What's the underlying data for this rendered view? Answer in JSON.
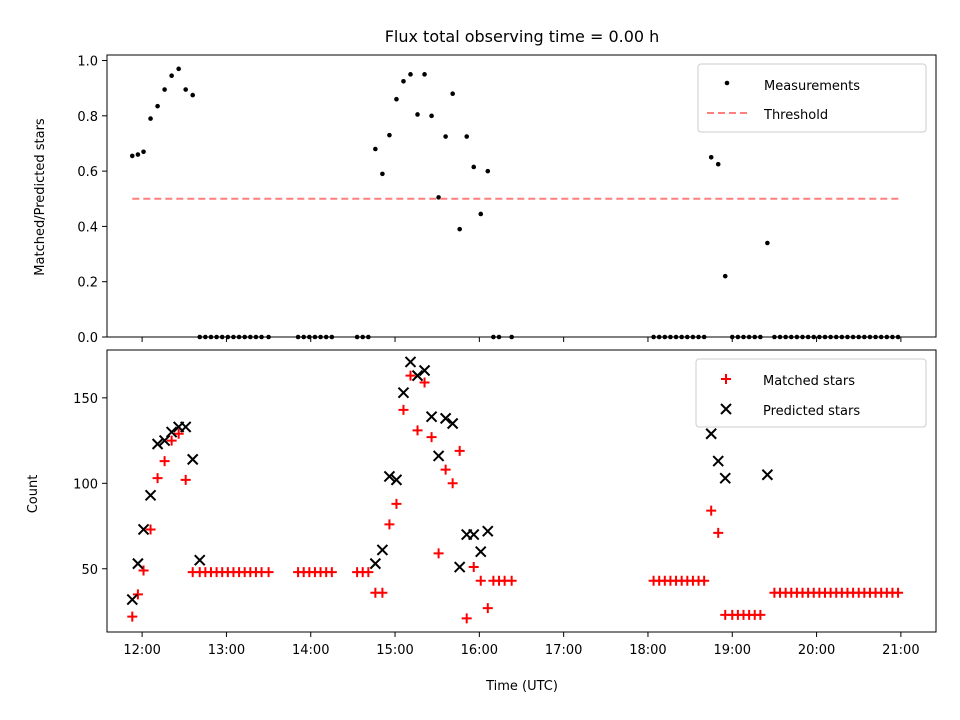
{
  "title": "Flux total observing time = 0.00 h",
  "colors": {
    "measure": "#000000",
    "threshold": "#ff7f7f",
    "matched": "#ff0000",
    "predicted": "#000000"
  },
  "chart_data": [
    {
      "type": "scatter",
      "ylabel": "Matched/Predicted stars",
      "xlim": [
        "11:35",
        "21:25"
      ],
      "ylim": [
        0,
        1.02
      ],
      "yticks": [
        "0.0",
        "0.2",
        "0.4",
        "0.6",
        "0.8",
        "1.0"
      ],
      "legend": {
        "placement": "top-right",
        "entries": [
          "Measurements",
          "Threshold"
        ]
      },
      "threshold": {
        "name": "Threshold",
        "value": 0.5,
        "x_range": [
          "11:53",
          "21:00"
        ],
        "style": "dashed"
      },
      "series": [
        {
          "name": "Measurements",
          "marker": "dot",
          "points": [
            [
              "11:53",
              0.655
            ],
            [
              "11:57",
              0.66
            ],
            [
              "12:01",
              0.67
            ],
            [
              "12:06",
              0.79
            ],
            [
              "12:11",
              0.835
            ],
            [
              "12:16",
              0.895
            ],
            [
              "12:21",
              0.945
            ],
            [
              "12:26",
              0.97
            ],
            [
              "12:31",
              0.895
            ],
            [
              "12:36",
              0.875
            ],
            [
              "12:41",
              0
            ],
            [
              "12:45",
              0
            ],
            [
              "12:49",
              0
            ],
            [
              "12:53",
              0
            ],
            [
              "12:57",
              0
            ],
            [
              "13:01",
              0
            ],
            [
              "13:05",
              0
            ],
            [
              "13:09",
              0
            ],
            [
              "13:13",
              0
            ],
            [
              "13:17",
              0
            ],
            [
              "13:21",
              0
            ],
            [
              "13:25",
              0
            ],
            [
              "13:30",
              0
            ],
            [
              "13:51",
              0
            ],
            [
              "13:55",
              0
            ],
            [
              "13:59",
              0
            ],
            [
              "14:03",
              0
            ],
            [
              "14:07",
              0
            ],
            [
              "14:11",
              0
            ],
            [
              "14:15",
              0
            ],
            [
              "14:33",
              0
            ],
            [
              "14:37",
              0
            ],
            [
              "14:41",
              0
            ],
            [
              "14:46",
              0.68
            ],
            [
              "14:51",
              0.59
            ],
            [
              "14:56",
              0.73
            ],
            [
              "15:01",
              0.86
            ],
            [
              "15:06",
              0.925
            ],
            [
              "15:11",
              0.95
            ],
            [
              "15:16",
              0.805
            ],
            [
              "15:21",
              0.95
            ],
            [
              "15:26",
              0.8
            ],
            [
              "15:31",
              0.505
            ],
            [
              "15:36",
              0.725
            ],
            [
              "15:41",
              0.88
            ],
            [
              "15:46",
              0.39
            ],
            [
              "15:51",
              0.725
            ],
            [
              "15:56",
              0.615
            ],
            [
              "16:01",
              0.445
            ],
            [
              "16:06",
              0.6
            ],
            [
              "16:10",
              0
            ],
            [
              "16:14",
              0
            ],
            [
              "16:23",
              0
            ],
            [
              "18:04",
              0
            ],
            [
              "18:08",
              0
            ],
            [
              "18:12",
              0
            ],
            [
              "18:16",
              0
            ],
            [
              "18:20",
              0
            ],
            [
              "18:24",
              0
            ],
            [
              "18:28",
              0
            ],
            [
              "18:32",
              0
            ],
            [
              "18:36",
              0
            ],
            [
              "18:40",
              0
            ],
            [
              "18:45",
              0.65
            ],
            [
              "18:50",
              0.625
            ],
            [
              "18:55",
              0.22
            ],
            [
              "19:00",
              0
            ],
            [
              "19:04",
              0
            ],
            [
              "19:08",
              0
            ],
            [
              "19:12",
              0
            ],
            [
              "19:16",
              0
            ],
            [
              "19:20",
              0
            ],
            [
              "19:25",
              0.34
            ],
            [
              "19:30",
              0
            ],
            [
              "19:34",
              0
            ],
            [
              "19:38",
              0
            ],
            [
              "19:42",
              0
            ],
            [
              "19:46",
              0
            ],
            [
              "19:50",
              0
            ],
            [
              "19:54",
              0
            ],
            [
              "19:58",
              0
            ],
            [
              "20:02",
              0
            ],
            [
              "20:06",
              0
            ],
            [
              "20:10",
              0
            ],
            [
              "20:14",
              0
            ],
            [
              "20:18",
              0
            ],
            [
              "20:22",
              0
            ],
            [
              "20:26",
              0
            ],
            [
              "20:30",
              0
            ],
            [
              "20:34",
              0
            ],
            [
              "20:38",
              0
            ],
            [
              "20:42",
              0
            ],
            [
              "20:46",
              0
            ],
            [
              "20:50",
              0
            ],
            [
              "20:54",
              0
            ],
            [
              "20:58",
              0
            ]
          ]
        }
      ]
    },
    {
      "type": "scatter",
      "xlabel": "Time (UTC)",
      "ylabel": "Count",
      "xlim": [
        "11:35",
        "21:25"
      ],
      "ylim": [
        13,
        178
      ],
      "yticks": [
        "50",
        "100",
        "150"
      ],
      "xticks": [
        "12:00",
        "13:00",
        "14:00",
        "15:00",
        "16:00",
        "17:00",
        "18:00",
        "19:00",
        "20:00",
        "21:00"
      ],
      "legend": {
        "placement": "top-right",
        "entries": [
          "Matched stars",
          "Predicted stars"
        ]
      },
      "series": [
        {
          "name": "Matched stars",
          "marker": "plus",
          "points": [
            [
              "11:53",
              22
            ],
            [
              "11:57",
              35
            ],
            [
              "12:01",
              49
            ],
            [
              "12:06",
              73
            ],
            [
              "12:11",
              103
            ],
            [
              "12:16",
              113
            ],
            [
              "12:21",
              125
            ],
            [
              "12:26",
              129
            ],
            [
              "12:31",
              102
            ],
            [
              "12:36",
              48
            ],
            [
              "12:41",
              48
            ],
            [
              "12:45",
              48
            ],
            [
              "12:49",
              48
            ],
            [
              "12:53",
              48
            ],
            [
              "12:57",
              48
            ],
            [
              "13:01",
              48
            ],
            [
              "13:05",
              48
            ],
            [
              "13:09",
              48
            ],
            [
              "13:13",
              48
            ],
            [
              "13:17",
              48
            ],
            [
              "13:21",
              48
            ],
            [
              "13:25",
              48
            ],
            [
              "13:30",
              48
            ],
            [
              "13:51",
              48
            ],
            [
              "13:55",
              48
            ],
            [
              "13:59",
              48
            ],
            [
              "14:03",
              48
            ],
            [
              "14:07",
              48
            ],
            [
              "14:11",
              48
            ],
            [
              "14:15",
              48
            ],
            [
              "14:33",
              48
            ],
            [
              "14:37",
              48
            ],
            [
              "14:41",
              48
            ],
            [
              "14:46",
              36
            ],
            [
              "14:51",
              36
            ],
            [
              "14:56",
              76
            ],
            [
              "15:01",
              88
            ],
            [
              "15:06",
              143
            ],
            [
              "15:11",
              163
            ],
            [
              "15:16",
              131
            ],
            [
              "15:21",
              159
            ],
            [
              "15:26",
              127
            ],
            [
              "15:31",
              59
            ],
            [
              "15:36",
              108
            ],
            [
              "15:41",
              100
            ],
            [
              "15:46",
              119
            ],
            [
              "15:51",
              21
            ],
            [
              "15:56",
              51
            ],
            [
              "16:01",
              43
            ],
            [
              "16:06",
              27
            ],
            [
              "16:10",
              43
            ],
            [
              "16:14",
              43
            ],
            [
              "16:18",
              43
            ],
            [
              "16:23",
              43
            ],
            [
              "18:04",
              43
            ],
            [
              "18:08",
              43
            ],
            [
              "18:12",
              43
            ],
            [
              "18:16",
              43
            ],
            [
              "18:20",
              43
            ],
            [
              "18:24",
              43
            ],
            [
              "18:28",
              43
            ],
            [
              "18:32",
              43
            ],
            [
              "18:36",
              43
            ],
            [
              "18:40",
              43
            ],
            [
              "18:45",
              84
            ],
            [
              "18:50",
              71
            ],
            [
              "18:55",
              23
            ],
            [
              "19:00",
              23
            ],
            [
              "19:04",
              23
            ],
            [
              "19:08",
              23
            ],
            [
              "19:12",
              23
            ],
            [
              "19:16",
              23
            ],
            [
              "19:20",
              23
            ],
            [
              "19:30",
              36
            ],
            [
              "19:34",
              36
            ],
            [
              "19:38",
              36
            ],
            [
              "19:42",
              36
            ],
            [
              "19:46",
              36
            ],
            [
              "19:50",
              36
            ],
            [
              "19:54",
              36
            ],
            [
              "19:58",
              36
            ],
            [
              "20:02",
              36
            ],
            [
              "20:06",
              36
            ],
            [
              "20:10",
              36
            ],
            [
              "20:14",
              36
            ],
            [
              "20:18",
              36
            ],
            [
              "20:22",
              36
            ],
            [
              "20:26",
              36
            ],
            [
              "20:30",
              36
            ],
            [
              "20:34",
              36
            ],
            [
              "20:38",
              36
            ],
            [
              "20:42",
              36
            ],
            [
              "20:46",
              36
            ],
            [
              "20:50",
              36
            ],
            [
              "20:54",
              36
            ],
            [
              "20:58",
              36
            ]
          ]
        },
        {
          "name": "Predicted stars",
          "marker": "x",
          "points": [
            [
              "11:53",
              32
            ],
            [
              "11:57",
              53
            ],
            [
              "12:01",
              73
            ],
            [
              "12:06",
              93
            ],
            [
              "12:11",
              123
            ],
            [
              "12:16",
              125
            ],
            [
              "12:21",
              130
            ],
            [
              "12:26",
              133
            ],
            [
              "12:31",
              133
            ],
            [
              "12:36",
              114
            ],
            [
              "12:41",
              55
            ],
            [
              "14:46",
              53
            ],
            [
              "14:51",
              61
            ],
            [
              "14:56",
              104
            ],
            [
              "15:01",
              102
            ],
            [
              "15:06",
              153
            ],
            [
              "15:11",
              171
            ],
            [
              "15:16",
              163
            ],
            [
              "15:21",
              166
            ],
            [
              "15:26",
              139
            ],
            [
              "15:31",
              116
            ],
            [
              "15:36",
              138
            ],
            [
              "15:41",
              135
            ],
            [
              "15:46",
              51
            ],
            [
              "15:51",
              70
            ],
            [
              "15:56",
              70
            ],
            [
              "16:01",
              60
            ],
            [
              "16:06",
              72
            ],
            [
              "18:45",
              129
            ],
            [
              "18:50",
              113
            ],
            [
              "18:55",
              103
            ],
            [
              "19:25",
              105
            ]
          ]
        }
      ]
    }
  ]
}
